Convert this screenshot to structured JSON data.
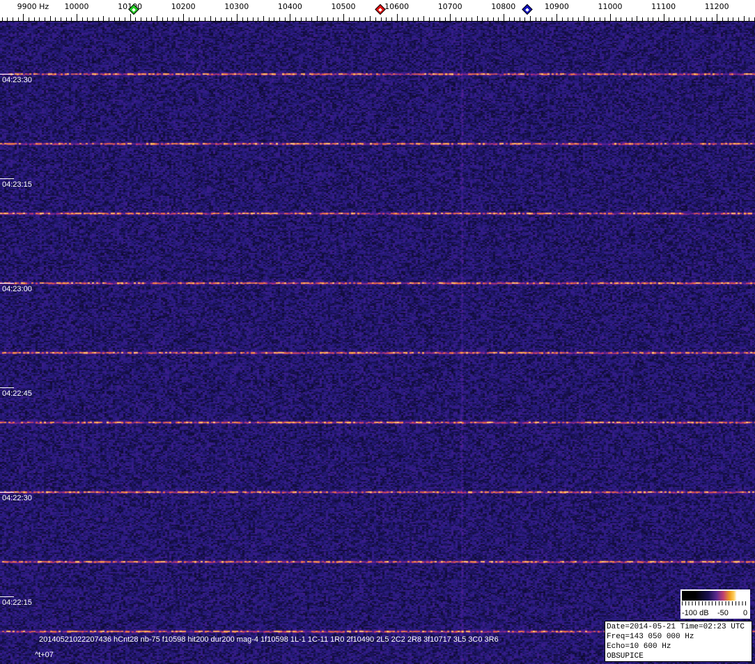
{
  "chart_data": {
    "type": "heatmap",
    "x_unit_label": "Hz",
    "x_ticks": [
      9900,
      10000,
      10100,
      10200,
      10300,
      10400,
      10500,
      10600,
      10700,
      10800,
      10900,
      11000,
      11100,
      11200
    ],
    "xlim": [
      9855,
      11271
    ],
    "y_time_labels": [
      "04:23:30",
      "04:23:15",
      "04:23:00",
      "04:22:45",
      "04:22:30",
      "04:22:15"
    ],
    "markers": [
      {
        "color": "#22cc22",
        "freq": 10107
      },
      {
        "color": "#dd1111",
        "freq": 10569
      },
      {
        "color": "#1111bb",
        "freq": 10845
      }
    ],
    "colorbar": {
      "labels": [
        "-100 dB",
        "-50",
        "0"
      ],
      "range_db": [
        -100,
        0
      ]
    },
    "echo_lines_count": 9
  },
  "overlay": {
    "event_text": "20140521022207436 hCnt28 nb-75 f10598 hit200 dur200 mag-4 1f10598 1L-1 1C-11 1R0 2f10490 2L5 2C2 2R8 3f10717 3L5 3C0 3R6",
    "offset_text": "^t+07"
  },
  "info": {
    "line1": "Date=2014-05-21 Time=02:23 UTC",
    "line2": "Freq=143 050 000 Hz",
    "line3": "Echo=10 600 Hz",
    "line4": "OBSUPICE"
  }
}
